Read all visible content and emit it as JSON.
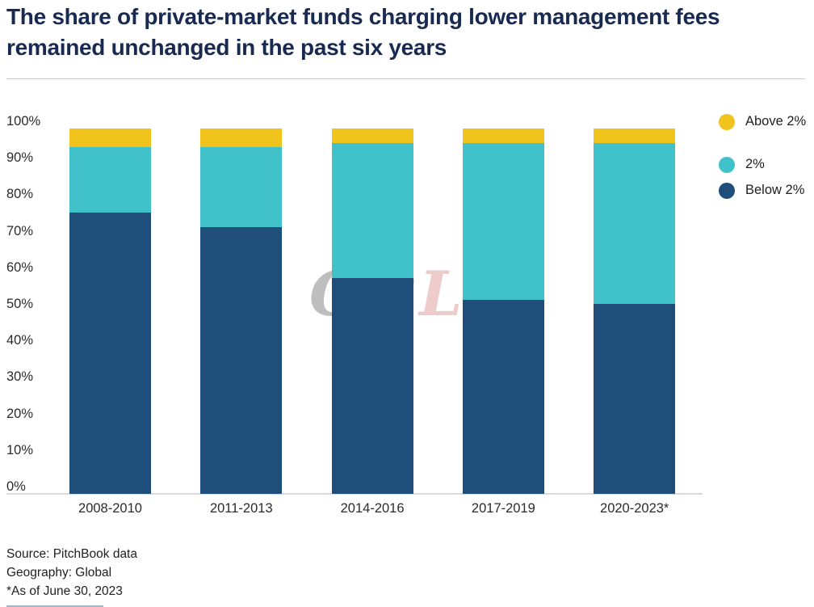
{
  "title": "The share of private-market funds charging lower management fees remained unchanged in the past six years",
  "watermark": {
    "text": "GPLP",
    "letters": [
      {
        "char": "G",
        "color": "#b3b3b3"
      },
      {
        "char": "P",
        "color": "#b3bcc4"
      },
      {
        "char": "L",
        "color": "#ecc3c3"
      },
      {
        "char": "P",
        "color": "#b3b3b3"
      }
    ]
  },
  "legend": [
    {
      "label": "Above 2%",
      "color": "#f0c41d"
    },
    {
      "label": "2%",
      "color": "#41c2ca"
    },
    {
      "label": "Below 2%",
      "color": "#1f4e7b"
    }
  ],
  "footer": {
    "source": "Source: PitchBook data",
    "geography": "Geography: Global",
    "asof": "*As of June 30, 2023"
  },
  "chart_data": {
    "type": "bar",
    "stacked": true,
    "title": "The share of private-market funds charging lower management fees remained unchanged in the past six years",
    "categories": [
      "2008-2010",
      "2011-2013",
      "2014-2016",
      "2017-2019",
      "2020-2023*"
    ],
    "series": [
      {
        "name": "Below 2%",
        "color": "#1f4e7b",
        "values": [
          77,
          73,
          59,
          53,
          52
        ]
      },
      {
        "name": "2%",
        "color": "#41c2ca",
        "values": [
          18,
          22,
          37,
          43,
          44
        ]
      },
      {
        "name": "Above 2%",
        "color": "#f0c41d",
        "values": [
          5,
          5,
          4,
          4,
          4
        ]
      }
    ],
    "xlabel": "",
    "ylabel": "",
    "ylim": [
      0,
      100
    ],
    "y_ticks": [
      "100%",
      "90%",
      "80%",
      "70%",
      "60%",
      "50%",
      "40%",
      "30%",
      "20%",
      "10%",
      "0%"
    ],
    "grid": false,
    "legend_position": "top-right"
  }
}
